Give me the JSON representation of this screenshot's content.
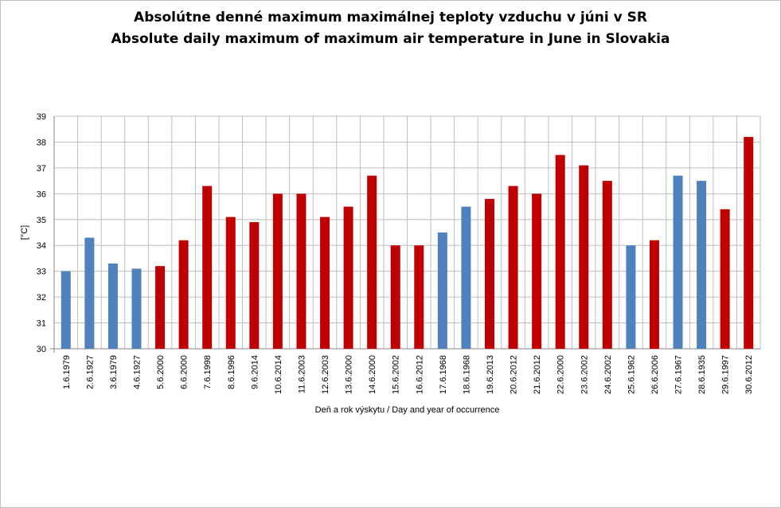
{
  "chart_data": {
    "type": "bar",
    "title": "Absolútne denné maximum maximálnej teploty vzduchu v júni v SR",
    "subtitle": "Absolute daily maximum of maximum air temperature in June in Slovakia",
    "xlabel": "Deň a rok výskytu  / Day and year of occurrence",
    "ylabel": "[°C]",
    "ylim": [
      30,
      39
    ],
    "yticks": [
      30,
      31,
      32,
      33,
      34,
      35,
      36,
      37,
      38,
      39
    ],
    "grid": true,
    "legend": "none",
    "colors": {
      "blue": "#4f81bd",
      "red": "#c00000"
    },
    "categories": [
      "1.6.1979",
      "2.6.1927",
      "3.6.1979",
      "4.6.1927",
      "5.6.2000",
      "6.6.2000",
      "7.6.1998",
      "8.6.1996",
      "9.6.2014",
      "10.6.2014",
      "11.6.2003",
      "12.6.2003",
      "13.6.2000",
      "14.6.2000",
      "15.6.2002",
      "16.6.2012",
      "17.6.1968",
      "18.6.1968",
      "19.6.2013",
      "20.6.2012",
      "21.6.2012",
      "22.6.2000",
      "23.6.2002",
      "24.6.2002",
      "25.6.1962",
      "26.6.2006",
      "27.6.1967",
      "28.6.1935",
      "29.6.1997",
      "30.6.2012"
    ],
    "values": [
      33.0,
      34.3,
      33.3,
      33.1,
      33.2,
      34.2,
      36.3,
      35.1,
      34.9,
      36.0,
      36.0,
      35.1,
      35.5,
      36.7,
      34.0,
      34.0,
      34.5,
      35.5,
      35.8,
      36.3,
      36.0,
      37.5,
      37.1,
      36.5,
      34.0,
      34.2,
      36.7,
      36.5,
      35.4,
      38.2
    ],
    "bar_colors": [
      "blue",
      "blue",
      "blue",
      "blue",
      "red",
      "red",
      "red",
      "red",
      "red",
      "red",
      "red",
      "red",
      "red",
      "red",
      "red",
      "red",
      "blue",
      "blue",
      "red",
      "red",
      "red",
      "red",
      "red",
      "red",
      "blue",
      "red",
      "blue",
      "blue",
      "red",
      "red"
    ]
  }
}
